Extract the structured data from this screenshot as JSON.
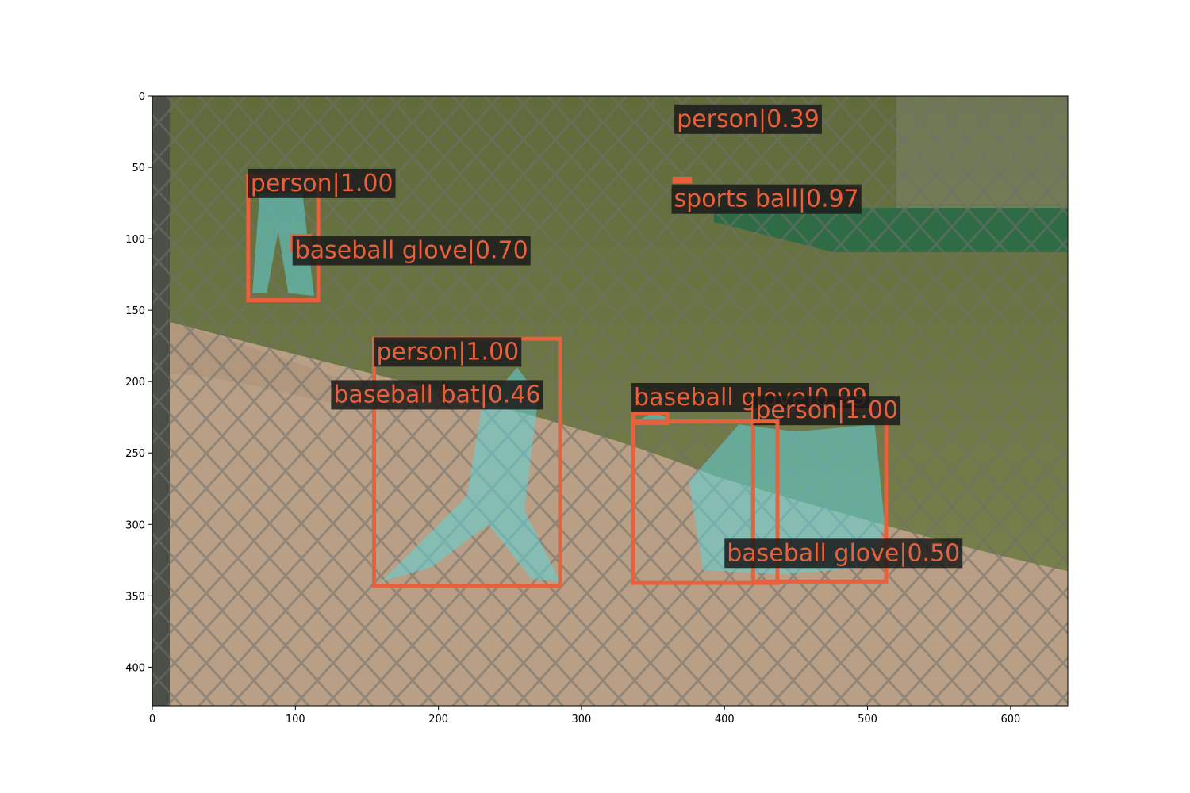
{
  "figure": {
    "image_width": 640,
    "image_height": 427,
    "x_ticks": [
      0,
      100,
      200,
      300,
      400,
      500,
      600
    ],
    "y_ticks": [
      0,
      50,
      100,
      150,
      200,
      250,
      300,
      350,
      400
    ],
    "box_color": "#e8603c",
    "label_bg": "#1a1a1a",
    "label_text_color": "#e8603c",
    "mask_color": "#5fd3d8"
  },
  "detections": [
    {
      "label": "person|0.39"
    },
    {
      "label": "sports ball|0.97"
    },
    {
      "label": "person|1.00"
    },
    {
      "label": "baseball glove|0.70"
    },
    {
      "label": "person|1.00"
    },
    {
      "label": "baseball bat|0.46"
    },
    {
      "label": "baseball glove|0.99"
    },
    {
      "label": "person|1.00"
    },
    {
      "label": "baseball glove|0.50"
    }
  ]
}
